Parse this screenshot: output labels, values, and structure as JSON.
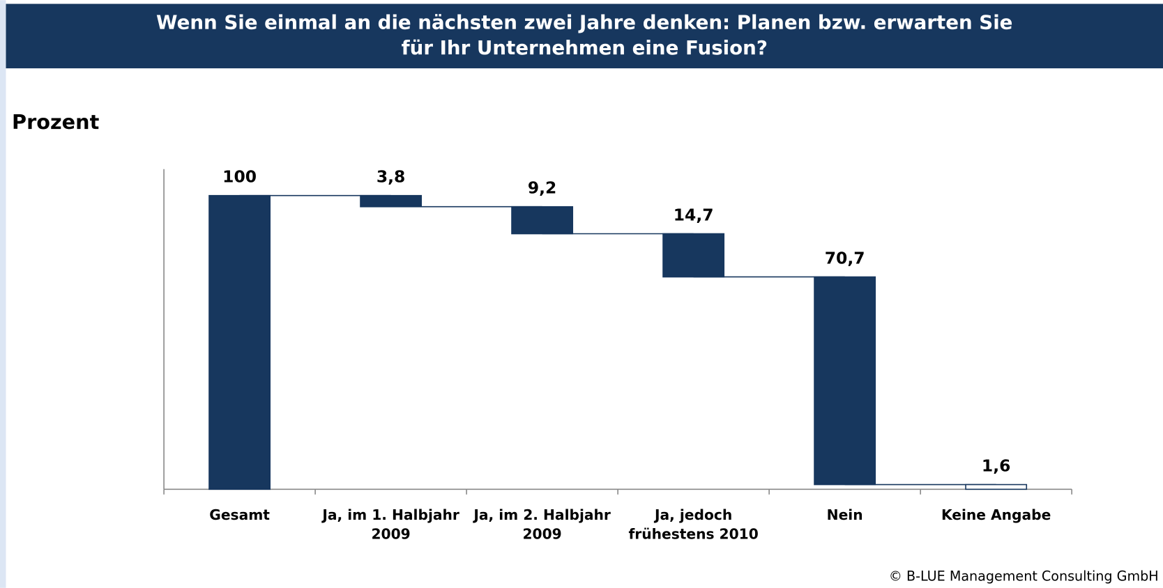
{
  "chart_data": {
    "type": "waterfall",
    "title": "Wenn Sie einmal an die nächsten zwei Jahre denken: Planen bzw. erwarten Sie\nfür Ihr Unternehmen eine Fusion?",
    "y_label": "Prozent",
    "categories": [
      "Gesamt",
      "Ja, im 1. Halbjahr\n2009",
      "Ja, im 2. Halbjahr\n2009",
      "Ja, jedoch\nfrühestens 2010",
      "Nein",
      "Keine Angabe"
    ],
    "values": [
      100,
      3.8,
      9.2,
      14.7,
      70.7,
      1.6
    ],
    "value_labels": [
      "100",
      "3,8",
      "9,2",
      "14,7",
      "70,7",
      "1,6"
    ],
    "colors": [
      "#17375e",
      "#17375e",
      "#17375e",
      "#17375e",
      "#17375e",
      "#ffffff"
    ],
    "ylim": [
      0,
      109
    ],
    "source": "© B-LUE Management Consulting GmbH"
  }
}
